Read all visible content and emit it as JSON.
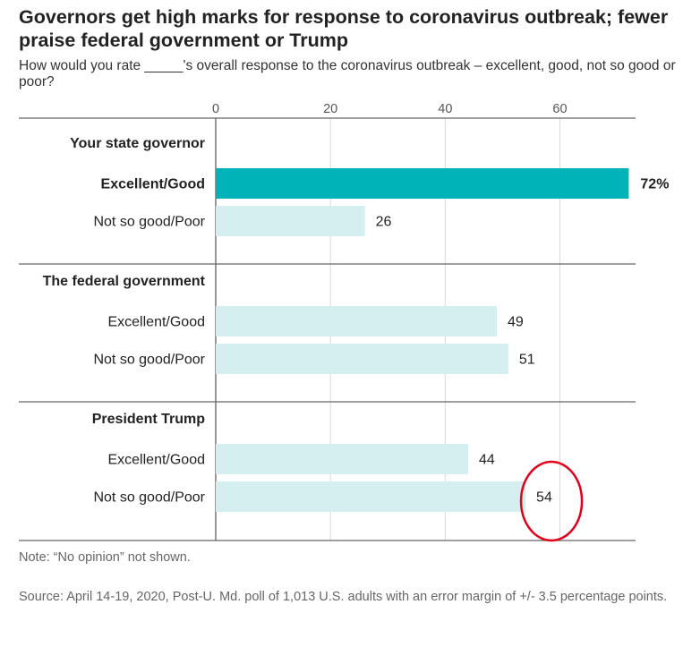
{
  "title": "Governors get high marks for response to coronavirus outbreak; fewer praise federal government or Trump",
  "subtitle": "How would you rate _____'s overall response to the coronavirus outbreak – excellent, good, not so good or poor?",
  "note": "Note: “No opinion” not shown.",
  "source": "Source: April 14-19, 2020, Post-U. Md. poll of 1,013 U.S. adults with an error margin of +/- 3.5 percentage points.",
  "colors": {
    "highlight": "#00b3b8",
    "bar": "#d5eef0",
    "annotation": "#e2001a"
  },
  "chart_data": {
    "type": "bar",
    "orientation": "horizontal",
    "xlim": [
      0,
      72
    ],
    "xticks": [
      0,
      20,
      40,
      60
    ],
    "grid": true,
    "groups": [
      {
        "name": "Your state governor",
        "bars": [
          {
            "label": "Excellent/Good",
            "value": 72,
            "value_label": "72%",
            "highlight": true
          },
          {
            "label": "Not so good/Poor",
            "value": 26,
            "value_label": "26",
            "highlight": false
          }
        ]
      },
      {
        "name": "The federal government",
        "bars": [
          {
            "label": "Excellent/Good",
            "value": 49,
            "value_label": "49",
            "highlight": false
          },
          {
            "label": "Not so good/Poor",
            "value": 51,
            "value_label": "51",
            "highlight": false
          }
        ]
      },
      {
        "name": "President Trump",
        "bars": [
          {
            "label": "Excellent/Good",
            "value": 44,
            "value_label": "44",
            "highlight": false
          },
          {
            "label": "Not so good/Poor",
            "value": 54,
            "value_label": "54",
            "highlight": false,
            "circled": true
          }
        ]
      }
    ]
  }
}
